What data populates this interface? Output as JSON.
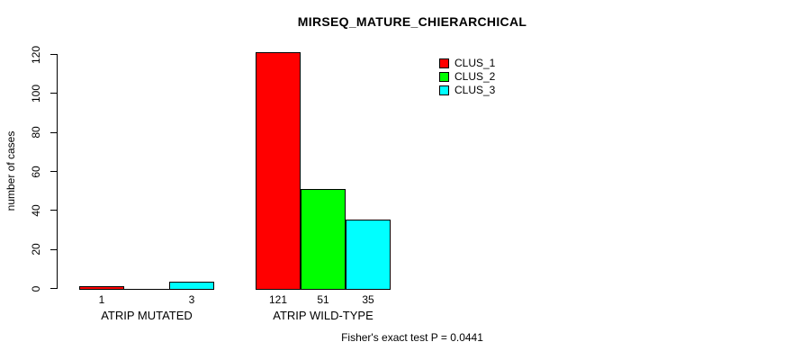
{
  "chart_data": {
    "type": "bar",
    "title": "MIRSEQ_MATURE_CHIERARCHICAL",
    "ylabel": "number of cases",
    "ylim": [
      0,
      120
    ],
    "yticks": [
      "0",
      "20",
      "40",
      "60",
      "80",
      "100",
      "120"
    ],
    "categories": [
      "ATRIP MUTATED",
      "ATRIP WILD-TYPE"
    ],
    "series": [
      {
        "name": "CLUS_1",
        "color": "#ff0000",
        "values": [
          1,
          121
        ]
      },
      {
        "name": "CLUS_2",
        "color": "#00ff00",
        "values": [
          0,
          51
        ]
      },
      {
        "name": "CLUS_3",
        "color": "#00ffff",
        "values": [
          3,
          35
        ]
      }
    ],
    "bar_value_labels": [
      [
        "1",
        "",
        "3"
      ],
      [
        "121",
        "51",
        "35"
      ]
    ],
    "legend_position": "top-right",
    "grid": false,
    "footer": "Fisher's exact test P = 0.0441",
    "axis_color": "#000000",
    "background_color": "#ffffff"
  }
}
